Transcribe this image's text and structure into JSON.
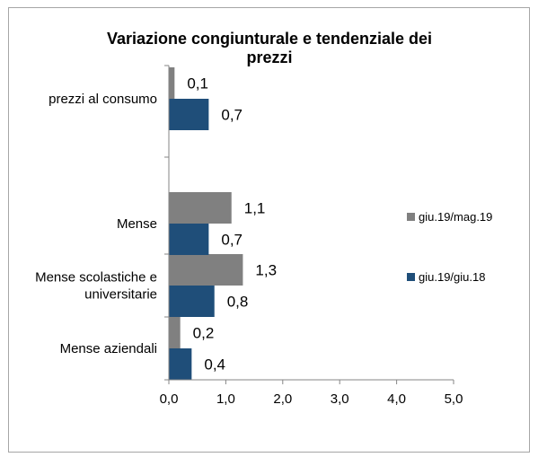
{
  "chart_data": {
    "type": "bar",
    "orientation": "horizontal",
    "title": "Variazione congiunturale e tendenziale dei prezzi",
    "title_lines": [
      "Variazione congiunturale e tendenziale dei",
      "prezzi"
    ],
    "categories": [
      {
        "lines": [
          "prezzi al consumo"
        ]
      },
      {
        "lines": [
          "Mense"
        ]
      },
      {
        "lines": [
          "Mense scolastiche e",
          "universitarie"
        ]
      },
      {
        "lines": [
          "Mense aziendali"
        ]
      }
    ],
    "series": [
      {
        "name": "giu.19/mag.19",
        "color": "#808080",
        "values": [
          0.1,
          1.1,
          1.3,
          0.2
        ],
        "labels": [
          "0,1",
          "1,1",
          "1,3",
          "0,2"
        ]
      },
      {
        "name": "giu.19/giu.18",
        "color": "#1f4e79",
        "values": [
          0.7,
          0.7,
          0.8,
          0.4
        ],
        "labels": [
          "0,7",
          "0,7",
          "0,8",
          "0,4"
        ]
      }
    ],
    "xlim": [
      0,
      5
    ],
    "xticks": [
      {
        "value": 0,
        "label": "0,0"
      },
      {
        "value": 1,
        "label": "1,0"
      },
      {
        "value": 2,
        "label": "2,0"
      },
      {
        "value": 3,
        "label": "3,0"
      },
      {
        "value": 4,
        "label": "4,0"
      },
      {
        "value": 5,
        "label": "5,0"
      }
    ],
    "grid": false,
    "legend_position": "right"
  }
}
